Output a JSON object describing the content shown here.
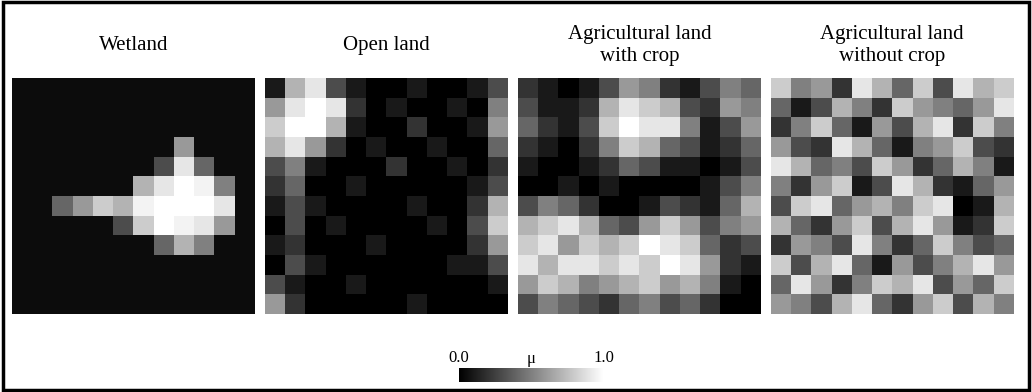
{
  "chart_data": [
    {
      "type": "heatmap",
      "title": "Wetland",
      "color": "gray",
      "tick_labels": false,
      "cells": [
        [
          0.05,
          0.05,
          0.05,
          0.05,
          0.05,
          0.05,
          0.05,
          0.05,
          0.05,
          0.05,
          0.05,
          0.05
        ],
        [
          0.05,
          0.05,
          0.05,
          0.05,
          0.05,
          0.05,
          0.05,
          0.05,
          0.05,
          0.05,
          0.05,
          0.05
        ],
        [
          0.05,
          0.05,
          0.05,
          0.05,
          0.05,
          0.05,
          0.05,
          0.05,
          0.05,
          0.05,
          0.05,
          0.05
        ],
        [
          0.05,
          0.05,
          0.05,
          0.05,
          0.05,
          0.05,
          0.05,
          0.05,
          0.6,
          0.05,
          0.05,
          0.05
        ],
        [
          0.05,
          0.05,
          0.05,
          0.05,
          0.05,
          0.05,
          0.05,
          0.3,
          0.9,
          0.4,
          0.05,
          0.05
        ],
        [
          0.05,
          0.05,
          0.05,
          0.05,
          0.05,
          0.05,
          0.7,
          0.9,
          1.0,
          0.95,
          0.5,
          0.05
        ],
        [
          0.05,
          0.05,
          0.4,
          0.6,
          0.8,
          0.7,
          0.95,
          1.0,
          1.0,
          1.0,
          0.9,
          0.05
        ],
        [
          0.05,
          0.05,
          0.05,
          0.05,
          0.05,
          0.3,
          0.8,
          1.0,
          0.95,
          0.9,
          0.6,
          0.05
        ],
        [
          0.05,
          0.05,
          0.05,
          0.05,
          0.05,
          0.05,
          0.05,
          0.4,
          0.7,
          0.5,
          0.05,
          0.05
        ],
        [
          0.05,
          0.05,
          0.05,
          0.05,
          0.05,
          0.05,
          0.05,
          0.05,
          0.05,
          0.05,
          0.05,
          0.05
        ],
        [
          0.05,
          0.05,
          0.05,
          0.05,
          0.05,
          0.05,
          0.05,
          0.05,
          0.05,
          0.05,
          0.05,
          0.05
        ],
        [
          0.05,
          0.05,
          0.05,
          0.05,
          0.05,
          0.05,
          0.05,
          0.05,
          0.05,
          0.05,
          0.05,
          0.05
        ]
      ]
    },
    {
      "type": "heatmap",
      "title": "Open land",
      "color": "gray",
      "tick_labels": false,
      "cells": [
        [
          0.1,
          0.7,
          0.9,
          0.3,
          0.1,
          0.0,
          0.0,
          0.1,
          0.0,
          0.0,
          0.1,
          0.3
        ],
        [
          0.6,
          0.9,
          1.0,
          0.9,
          0.2,
          0.0,
          0.1,
          0.0,
          0.0,
          0.1,
          0.0,
          0.5
        ],
        [
          0.8,
          1.0,
          1.0,
          0.7,
          0.1,
          0.0,
          0.0,
          0.2,
          0.0,
          0.0,
          0.1,
          0.6
        ],
        [
          0.7,
          0.9,
          0.6,
          0.2,
          0.0,
          0.1,
          0.0,
          0.0,
          0.1,
          0.0,
          0.0,
          0.4
        ],
        [
          0.3,
          0.5,
          0.1,
          0.0,
          0.0,
          0.0,
          0.2,
          0.0,
          0.0,
          0.1,
          0.0,
          0.2
        ],
        [
          0.2,
          0.4,
          0.0,
          0.0,
          0.1,
          0.0,
          0.0,
          0.0,
          0.0,
          0.0,
          0.1,
          0.3
        ],
        [
          0.1,
          0.3,
          0.1,
          0.0,
          0.0,
          0.0,
          0.0,
          0.1,
          0.0,
          0.0,
          0.2,
          0.7
        ],
        [
          0.0,
          0.3,
          0.0,
          0.1,
          0.0,
          0.0,
          0.0,
          0.0,
          0.1,
          0.0,
          0.3,
          0.8
        ],
        [
          0.1,
          0.2,
          0.0,
          0.0,
          0.0,
          0.1,
          0.0,
          0.0,
          0.0,
          0.0,
          0.2,
          0.6
        ],
        [
          0.0,
          0.3,
          0.1,
          0.0,
          0.0,
          0.0,
          0.0,
          0.0,
          0.0,
          0.1,
          0.1,
          0.3
        ],
        [
          0.3,
          0.1,
          0.0,
          0.0,
          0.1,
          0.0,
          0.0,
          0.0,
          0.0,
          0.0,
          0.0,
          0.1
        ],
        [
          0.6,
          0.2,
          0.0,
          0.0,
          0.0,
          0.0,
          0.0,
          0.1,
          0.0,
          0.0,
          0.0,
          0.0
        ]
      ]
    },
    {
      "type": "heatmap",
      "title": "Agricultural land with crop",
      "color": "gray",
      "tick_labels": false,
      "cells": [
        [
          0.2,
          0.1,
          0.0,
          0.1,
          0.3,
          0.6,
          0.5,
          0.2,
          0.1,
          0.3,
          0.5,
          0.4
        ],
        [
          0.3,
          0.1,
          0.1,
          0.2,
          0.7,
          0.9,
          0.8,
          0.7,
          0.3,
          0.2,
          0.6,
          0.5
        ],
        [
          0.4,
          0.2,
          0.1,
          0.3,
          0.8,
          1.0,
          0.9,
          0.9,
          0.5,
          0.1,
          0.3,
          0.6
        ],
        [
          0.2,
          0.1,
          0.0,
          0.2,
          0.5,
          0.8,
          0.7,
          0.4,
          0.3,
          0.1,
          0.2,
          0.4
        ],
        [
          0.1,
          0.0,
          0.0,
          0.1,
          0.2,
          0.4,
          0.3,
          0.1,
          0.1,
          0.0,
          0.1,
          0.3
        ],
        [
          0.0,
          0.0,
          0.1,
          0.0,
          0.1,
          0.0,
          0.0,
          0.0,
          0.0,
          0.1,
          0.3,
          0.5
        ],
        [
          0.3,
          0.5,
          0.4,
          0.2,
          0.0,
          0.0,
          0.1,
          0.3,
          0.2,
          0.1,
          0.4,
          0.7
        ],
        [
          0.7,
          0.8,
          0.9,
          0.7,
          0.4,
          0.3,
          0.6,
          0.8,
          0.6,
          0.3,
          0.5,
          0.6
        ],
        [
          0.8,
          0.9,
          0.6,
          0.8,
          0.7,
          0.8,
          1.0,
          0.9,
          0.8,
          0.4,
          0.2,
          0.3
        ],
        [
          0.9,
          0.7,
          0.9,
          0.9,
          0.8,
          0.9,
          0.8,
          1.0,
          0.9,
          0.6,
          0.2,
          0.1
        ],
        [
          0.6,
          0.8,
          0.7,
          0.5,
          0.6,
          0.7,
          0.8,
          0.6,
          0.7,
          0.5,
          0.1,
          0.0
        ],
        [
          0.3,
          0.5,
          0.4,
          0.3,
          0.2,
          0.4,
          0.5,
          0.3,
          0.4,
          0.2,
          0.0,
          0.0
        ]
      ]
    },
    {
      "type": "heatmap",
      "title": "Agricultural land without crop",
      "color": "gray",
      "tick_labels": false,
      "cells": [
        [
          0.8,
          0.5,
          0.6,
          0.2,
          0.9,
          0.7,
          0.4,
          0.8,
          0.3,
          0.9,
          0.7,
          0.8
        ],
        [
          0.4,
          0.1,
          0.3,
          0.7,
          0.5,
          0.2,
          0.8,
          0.6,
          0.5,
          0.4,
          0.6,
          0.9
        ],
        [
          0.2,
          0.5,
          0.8,
          0.4,
          0.1,
          0.6,
          0.3,
          0.7,
          0.9,
          0.2,
          0.8,
          0.5
        ],
        [
          0.6,
          0.3,
          0.2,
          0.9,
          0.7,
          0.4,
          0.1,
          0.5,
          0.6,
          0.8,
          0.3,
          0.2
        ],
        [
          0.9,
          0.7,
          0.4,
          0.5,
          0.3,
          0.8,
          0.6,
          0.2,
          0.4,
          0.7,
          0.5,
          0.1
        ],
        [
          0.5,
          0.2,
          0.6,
          0.8,
          0.1,
          0.3,
          0.9,
          0.7,
          0.2,
          0.1,
          0.4,
          0.6
        ],
        [
          0.3,
          0.8,
          0.9,
          0.4,
          0.6,
          0.7,
          0.5,
          0.8,
          0.9,
          0.0,
          0.1,
          0.7
        ],
        [
          0.7,
          0.4,
          0.2,
          0.6,
          0.8,
          0.3,
          0.7,
          0.9,
          0.6,
          0.1,
          0.2,
          0.8
        ],
        [
          0.2,
          0.6,
          0.5,
          0.3,
          0.9,
          0.5,
          0.2,
          0.4,
          0.8,
          0.5,
          0.3,
          0.4
        ],
        [
          0.8,
          0.3,
          0.7,
          0.9,
          0.4,
          0.1,
          0.6,
          0.3,
          0.5,
          0.7,
          0.9,
          0.6
        ],
        [
          0.4,
          0.9,
          0.6,
          0.2,
          0.5,
          0.8,
          0.7,
          0.9,
          0.3,
          0.6,
          0.4,
          0.8
        ],
        [
          0.6,
          0.5,
          0.3,
          0.7,
          0.9,
          0.4,
          0.2,
          0.6,
          0.8,
          0.3,
          0.7,
          0.5
        ]
      ]
    }
  ],
  "colorbar": {
    "label": "μ",
    "range": [
      0,
      1
    ],
    "ticks": [
      {
        "value": 0,
        "label": "0.0"
      },
      {
        "value": 1,
        "label": "1.0"
      }
    ]
  }
}
